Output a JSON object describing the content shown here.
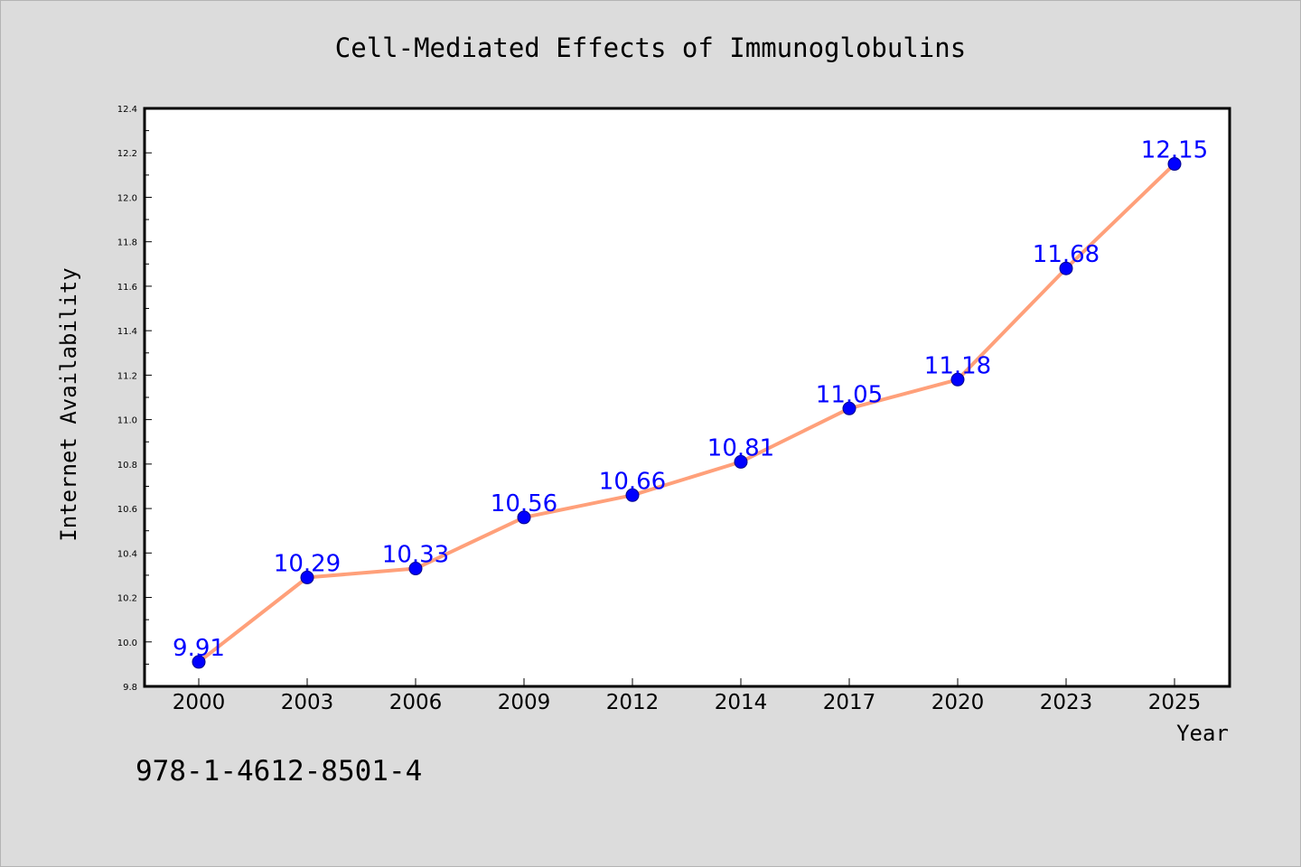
{
  "chart_data": {
    "type": "line",
    "title": "Cell-Mediated Effects of Immunoglobulins",
    "xlabel": "Year",
    "ylabel": "Internet Availability",
    "categories": [
      "2000",
      "2003",
      "2006",
      "2009",
      "2012",
      "2014",
      "2017",
      "2020",
      "2023",
      "2025"
    ],
    "series": [
      {
        "values": [
          9.91,
          10.29,
          10.33,
          10.56,
          10.66,
          10.81,
          11.05,
          11.18,
          11.68,
          12.15
        ],
        "labels": [
          "9.91",
          "10.29",
          "10.33",
          "10.56",
          "10.66",
          "10.81",
          "11.05",
          "11.18",
          "11.68",
          "12.15"
        ]
      }
    ],
    "ylim": [
      9.8,
      12.4
    ],
    "yticks": [
      "9.8",
      "10.0",
      "10.2",
      "10.4",
      "10.6",
      "10.8",
      "11.0",
      "11.2",
      "11.4",
      "11.6",
      "11.8",
      "12.0",
      "12.2",
      "12.4"
    ],
    "grid": false,
    "legend": "none",
    "colors": {
      "line": "#ffa07a",
      "marker": "#0000ff",
      "label": "#0000ff",
      "background": "#dcdcdc",
      "plot_background": "#ffffff"
    }
  },
  "footer_text": "978-1-4612-8501-4"
}
